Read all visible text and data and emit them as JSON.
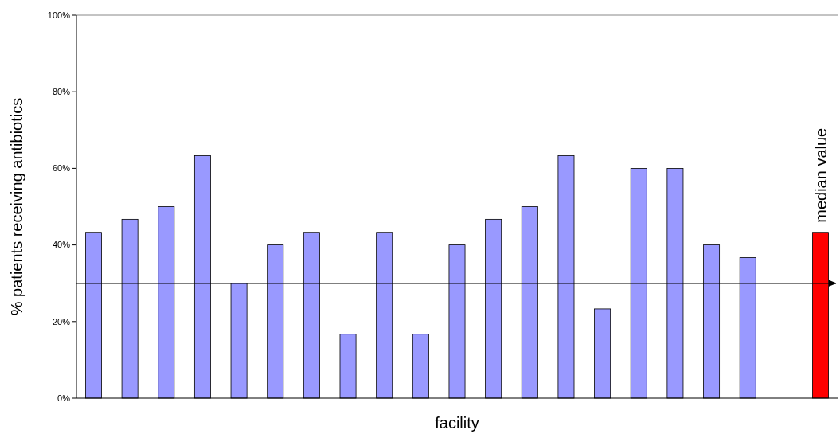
{
  "chart_data": {
    "type": "bar",
    "xlabel": "facility",
    "ylabel": "% patients receiving antibiotics",
    "categories": [
      null,
      null,
      null,
      null,
      null,
      null,
      null,
      null,
      null,
      null,
      null,
      null,
      null,
      null,
      null,
      null,
      null,
      null,
      null,
      null,
      "median value"
    ],
    "values": [
      43.3,
      46.7,
      50,
      63.3,
      30,
      40,
      43.3,
      16.7,
      43.3,
      16.7,
      40,
      46.7,
      50,
      63.3,
      23.3,
      60,
      60,
      40,
      36.7,
      null,
      43.3
    ],
    "colors": [
      "#9999ff",
      "#9999ff",
      "#9999ff",
      "#9999ff",
      "#9999ff",
      "#9999ff",
      "#9999ff",
      "#9999ff",
      "#9999ff",
      "#9999ff",
      "#9999ff",
      "#9999ff",
      "#9999ff",
      "#9999ff",
      "#9999ff",
      "#9999ff",
      "#9999ff",
      "#9999ff",
      "#9999ff",
      null,
      "#ff0000"
    ],
    "ylim": [
      0,
      100
    ],
    "yticks": [
      {
        "value": 0,
        "label": "0%"
      },
      {
        "value": 20,
        "label": "20%"
      },
      {
        "value": 40,
        "label": "40%"
      },
      {
        "value": 60,
        "label": "60%"
      },
      {
        "value": 80,
        "label": "80%"
      },
      {
        "value": 100,
        "label": "100%"
      }
    ],
    "ref_lines": [
      {
        "axis": "y",
        "value": 30,
        "color": "#000000",
        "line_style": "solid"
      }
    ],
    "grid": false
  }
}
